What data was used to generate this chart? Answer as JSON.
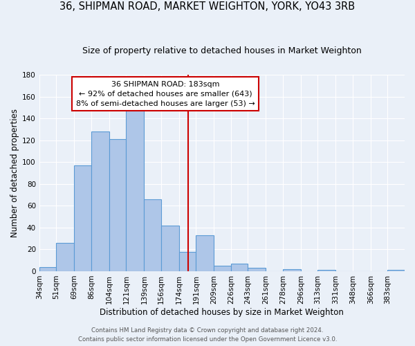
{
  "title": "36, SHIPMAN ROAD, MARKET WEIGHTON, YORK, YO43 3RB",
  "subtitle": "Size of property relative to detached houses in Market Weighton",
  "xlabel": "Distribution of detached houses by size in Market Weighton",
  "ylabel": "Number of detached properties",
  "bin_edges": [
    34,
    51,
    69,
    86,
    104,
    121,
    139,
    156,
    174,
    191,
    209,
    226,
    243,
    261,
    278,
    296,
    313,
    331,
    348,
    366,
    383,
    400
  ],
  "bin_labels": [
    "34sqm",
    "51sqm",
    "69sqm",
    "86sqm",
    "104sqm",
    "121sqm",
    "139sqm",
    "156sqm",
    "174sqm",
    "191sqm",
    "209sqm",
    "226sqm",
    "243sqm",
    "261sqm",
    "278sqm",
    "296sqm",
    "313sqm",
    "331sqm",
    "348sqm",
    "366sqm",
    "383sqm"
  ],
  "counts": [
    4,
    26,
    97,
    128,
    121,
    151,
    66,
    42,
    18,
    33,
    5,
    7,
    3,
    0,
    2,
    0,
    1,
    0,
    0,
    0,
    1
  ],
  "bar_color": "#aec6e8",
  "bar_edge_color": "#5b9bd5",
  "vline_x": 183,
  "vline_color": "#cc0000",
  "annotation_title": "36 SHIPMAN ROAD: 183sqm",
  "annotation_line1": "← 92% of detached houses are smaller (643)",
  "annotation_line2": "8% of semi-detached houses are larger (53) →",
  "annotation_box_color": "#cc0000",
  "ylim": [
    0,
    180
  ],
  "footer1": "Contains HM Land Registry data © Crown copyright and database right 2024.",
  "footer2": "Contains public sector information licensed under the Open Government Licence v3.0.",
  "bg_color": "#eaf0f8",
  "grid_color": "#ffffff",
  "title_fontsize": 10.5,
  "subtitle_fontsize": 9,
  "ylabel_fontsize": 8.5,
  "xlabel_fontsize": 8.5,
  "tick_fontsize": 7.5,
  "footer_fontsize": 6.2
}
